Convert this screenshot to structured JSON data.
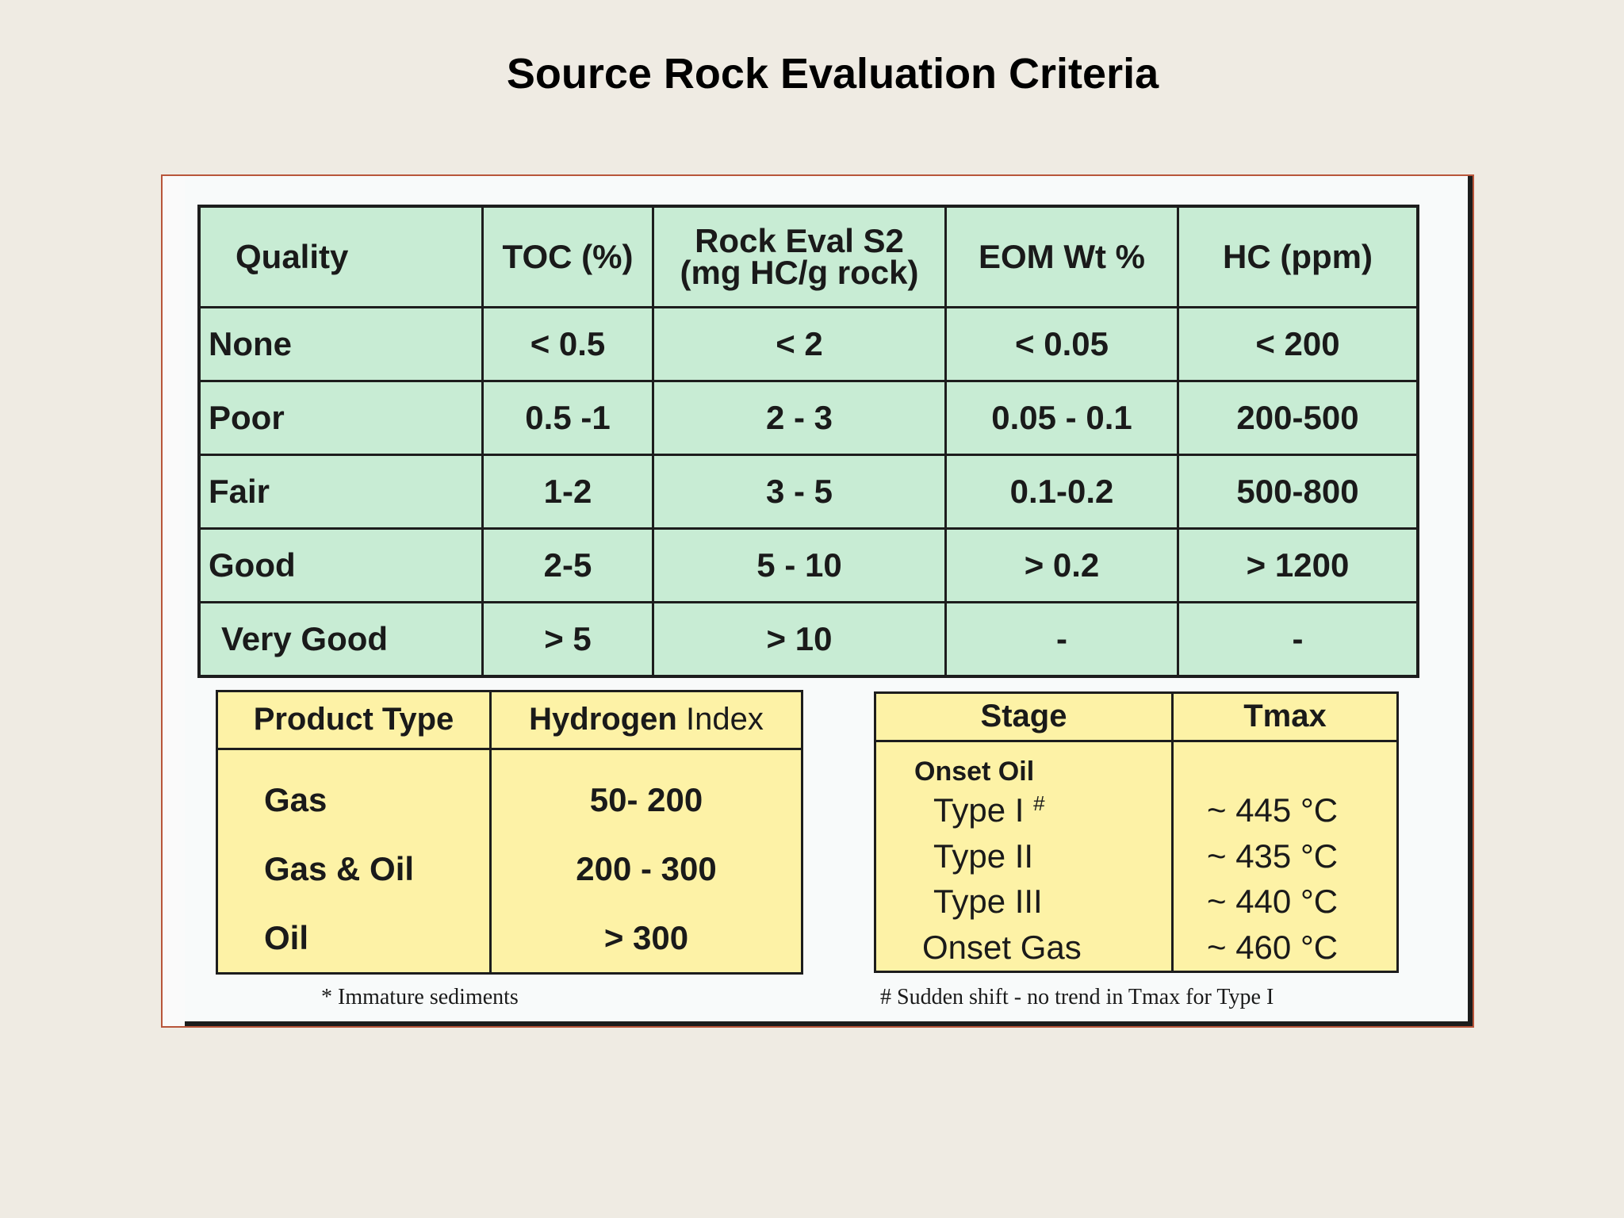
{
  "title": "Source Rock Evaluation Criteria",
  "quality_table": {
    "headers": {
      "quality": "Quality",
      "toc": "TOC (%)",
      "rock_eval_line1": "Rock Eval S2",
      "rock_eval_line2": "(mg HC/g rock)",
      "eom": "EOM Wt %",
      "hc": "HC (ppm)"
    },
    "rows": [
      {
        "quality": "None",
        "toc": "< 0.5",
        "s2": "< 2",
        "eom": "< 0.05",
        "hc": "< 200"
      },
      {
        "quality": "Poor",
        "toc": "0.5 -1",
        "s2": "2 - 3",
        "eom": "0.05 - 0.1",
        "hc": "200-500"
      },
      {
        "quality": "Fair",
        "toc": "1-2",
        "s2": "3 - 5",
        "eom": "0.1-0.2",
        "hc": "500-800"
      },
      {
        "quality": "Good",
        "toc": "2-5",
        "s2": "5 - 10",
        "eom": "> 0.2",
        "hc": "> 1200"
      },
      {
        "quality": "Very Good",
        "toc": "> 5",
        "s2": "> 10",
        "eom": "-",
        "hc": "-"
      }
    ]
  },
  "product_table": {
    "headers": {
      "product_type": "Product Type",
      "hydrogen_bold": "Hydrogen",
      "hydrogen_light": "Index"
    },
    "rows": [
      {
        "type": "Gas",
        "index": "50- 200"
      },
      {
        "type": "Gas & Oil",
        "index": "200 - 300"
      },
      {
        "type": "Oil",
        "index": "> 300"
      }
    ],
    "footnote": "* Immature sediments"
  },
  "stage_table": {
    "headers": {
      "stage": "Stage",
      "tmax": "Tmax"
    },
    "onset_oil": "Onset Oil",
    "rows": [
      {
        "stage": "Type I",
        "mark": "#",
        "tmax": "~ 445 °C"
      },
      {
        "stage": "Type II",
        "tmax": "~ 435 °C"
      },
      {
        "stage": "Type III",
        "tmax": "~ 440 °C"
      }
    ],
    "onset_gas": {
      "stage": "Onset Gas",
      "tmax": "~ 460 °C"
    },
    "footnote": "# Sudden shift - no trend in Tmax for Type I"
  },
  "colors": {
    "background": "#efebe3",
    "quality_fill": "#c8ecd4",
    "yellow_fill": "#fdf2a6",
    "frame": "#b8553a"
  }
}
